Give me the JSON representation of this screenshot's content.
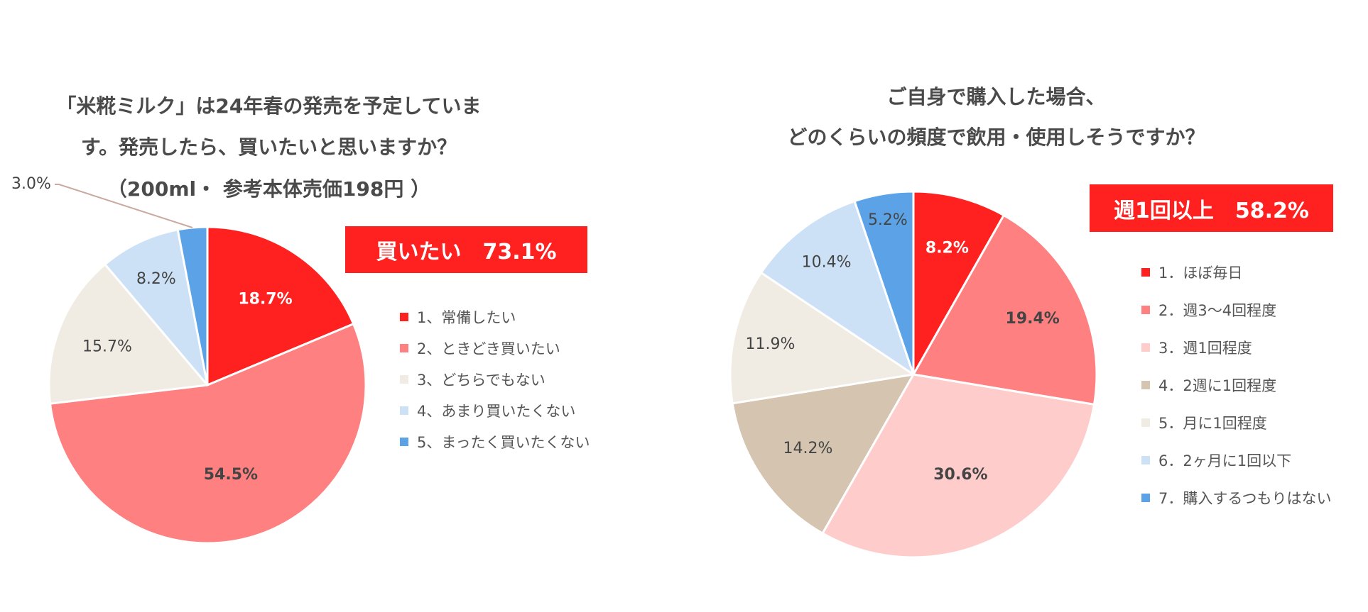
{
  "colors": {
    "red": "#ff2020",
    "salmon": "#ff8080",
    "pink": "#ffcccc",
    "tan": "#d4c4b0",
    "beige": "#f0ebe3",
    "lightblue": "#cce1f6",
    "blue": "#5ba3e6",
    "label_dark": "#444444",
    "label_white": "#ffffff"
  },
  "chart_data": [
    {
      "type": "pie",
      "title": [
        "「米糀ミルク」は24年春の発売を予定していま",
        "す。発売したら、買いたいと思いますか？",
        "（200ml・ 参考本体売価198円 ）"
      ],
      "callout": "買いたい　73.1%",
      "slices": [
        {
          "legend": "1、常備したい",
          "value": 18.7,
          "label": "18.7%",
          "color": "#ff2020",
          "label_color": "#ffffff",
          "bold": true
        },
        {
          "legend": "2、ときどき買いたい",
          "value": 54.5,
          "label": "54.5%",
          "color": "#ff8080",
          "label_color": "#444444",
          "bold": true
        },
        {
          "legend": "3、どちらでもない",
          "value": 15.7,
          "label": "15.7%",
          "color": "#f0ebe3",
          "label_color": "#444444",
          "bold": false
        },
        {
          "legend": "4、あまり買いたくない",
          "value": 8.2,
          "label": "8.2%",
          "color": "#cce1f6",
          "label_color": "#444444",
          "bold": false
        },
        {
          "legend": "5、まったく買いたくない",
          "value": 3.0,
          "label": "3.0%",
          "color": "#5ba3e6",
          "label_color": "#444444",
          "bold": false
        }
      ]
    },
    {
      "type": "pie",
      "title": [
        "ご自身で購入した場合、",
        "どのくらいの頻度で飲用・使用しそうですか？"
      ],
      "callout": "週1回以上　58.2%",
      "slices": [
        {
          "legend": "1．ほぼ毎日",
          "value": 8.2,
          "label": "8.2%",
          "color": "#ff2020",
          "label_color": "#ffffff",
          "bold": true
        },
        {
          "legend": "2．週3～4回程度",
          "value": 19.4,
          "label": "19.4%",
          "color": "#ff8080",
          "label_color": "#444444",
          "bold": true
        },
        {
          "legend": "3．週1回程度",
          "value": 30.6,
          "label": "30.6%",
          "color": "#ffcccc",
          "label_color": "#444444",
          "bold": true
        },
        {
          "legend": "4．2週に1回程度",
          "value": 14.2,
          "label": "14.2%",
          "color": "#d4c4b0",
          "label_color": "#444444",
          "bold": false
        },
        {
          "legend": "5．月に1回程度",
          "value": 11.9,
          "label": "11.9%",
          "color": "#f0ebe3",
          "label_color": "#444444",
          "bold": false
        },
        {
          "legend": "6．2ヶ月に1回以下",
          "value": 10.4,
          "label": "10.4%",
          "color": "#cce1f6",
          "label_color": "#444444",
          "bold": false
        },
        {
          "legend": "7．購入するつもりはない",
          "value": 5.2,
          "label": "5.2%",
          "color": "#5ba3e6",
          "label_color": "#444444",
          "bold": false
        }
      ]
    }
  ]
}
